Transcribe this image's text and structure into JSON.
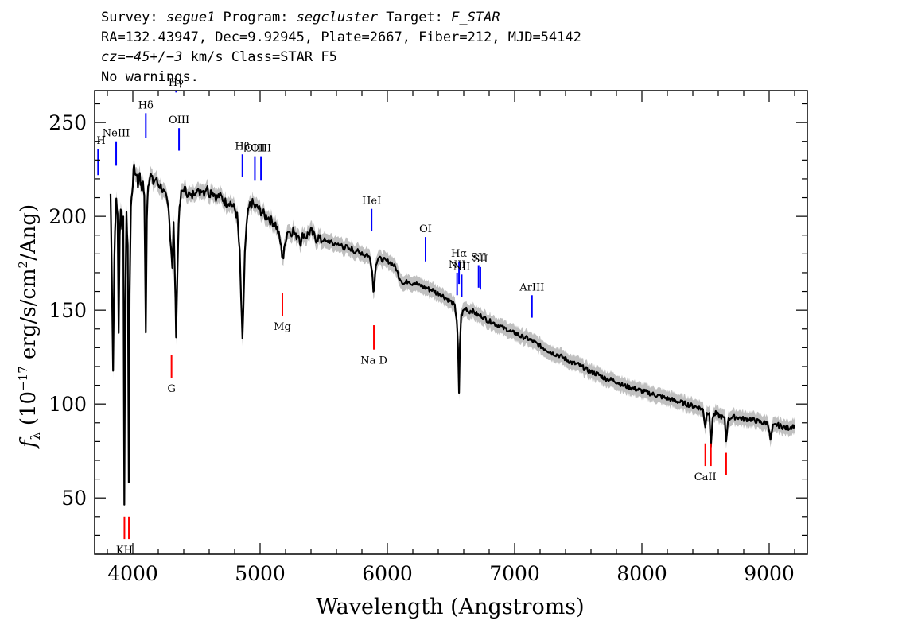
{
  "header": {
    "line1_a": "Survey: ",
    "line1_b": "segue1",
    "line1_c": " Program: ",
    "line1_d": "segcluster",
    "line1_e": " Target: ",
    "line1_f": "F_STAR",
    "line2": "RA=132.43947, Dec=9.92945, Plate=2667, Fiber=212, MJD=54142",
    "line3_a": "cz=",
    "line3_b": "−45+/−3",
    "line3_c": " km/s Class=STAR F5",
    "line4": "No warnings."
  },
  "chart_data": {
    "type": "line",
    "xlabel": "Wavelength (Angstroms)",
    "ylabel": "f_λ (10^-17 erg/s/cm^2/Ang)",
    "xlim": [
      3700,
      9300
    ],
    "ylim": [
      20,
      267
    ],
    "x_ticks": [
      4000,
      5000,
      6000,
      7000,
      8000,
      9000
    ],
    "y_ticks": [
      50,
      100,
      150,
      200,
      250
    ],
    "grid": false,
    "colors": {
      "flux": "#000000",
      "error_band": "#c0c0c0",
      "emission": "#0000ff",
      "absorption": "#ff0000"
    },
    "series": [
      {
        "name": "flux",
        "points": [
          [
            3825,
            212
          ],
          [
            3835,
            170
          ],
          [
            3845,
            118
          ],
          [
            3855,
            180
          ],
          [
            3870,
            210
          ],
          [
            3880,
            200
          ],
          [
            3889,
            140
          ],
          [
            3897,
            190
          ],
          [
            3905,
            205
          ],
          [
            3915,
            195
          ],
          [
            3925,
            200
          ],
          [
            3933,
            48
          ],
          [
            3940,
            150
          ],
          [
            3950,
            200
          ],
          [
            3960,
            185
          ],
          [
            3968,
            56
          ],
          [
            3975,
            160
          ],
          [
            3985,
            205
          ],
          [
            4000,
            218
          ],
          [
            4010,
            228
          ],
          [
            4020,
            222
          ],
          [
            4030,
            224
          ],
          [
            4040,
            216
          ],
          [
            4050,
            224
          ],
          [
            4060,
            218
          ],
          [
            4070,
            214
          ],
          [
            4080,
            218
          ],
          [
            4090,
            210
          ],
          [
            4102,
            140
          ],
          [
            4110,
            200
          ],
          [
            4120,
            218
          ],
          [
            4140,
            222
          ],
          [
            4160,
            218
          ],
          [
            4180,
            220
          ],
          [
            4200,
            217
          ],
          [
            4220,
            216
          ],
          [
            4240,
            213
          ],
          [
            4260,
            210
          ],
          [
            4280,
            204
          ],
          [
            4300,
            184
          ],
          [
            4310,
            174
          ],
          [
            4320,
            196
          ],
          [
            4330,
            170
          ],
          [
            4340,
            138
          ],
          [
            4350,
            168
          ],
          [
            4360,
            198
          ],
          [
            4380,
            212
          ],
          [
            4400,
            215
          ],
          [
            4420,
            213
          ],
          [
            4440,
            212
          ],
          [
            4460,
            210
          ],
          [
            4480,
            213
          ],
          [
            4500,
            215
          ],
          [
            4520,
            212
          ],
          [
            4540,
            215
          ],
          [
            4560,
            213
          ],
          [
            4580,
            216
          ],
          [
            4600,
            212
          ],
          [
            4620,
            214
          ],
          [
            4640,
            212
          ],
          [
            4660,
            210
          ],
          [
            4680,
            211
          ],
          [
            4700,
            210
          ],
          [
            4720,
            208
          ],
          [
            4740,
            207
          ],
          [
            4760,
            208
          ],
          [
            4780,
            206
          ],
          [
            4800,
            204
          ],
          [
            4820,
            200
          ],
          [
            4840,
            180
          ],
          [
            4861,
            133
          ],
          [
            4880,
            180
          ],
          [
            4900,
            200
          ],
          [
            4920,
            206
          ],
          [
            4940,
            207
          ],
          [
            4960,
            205
          ],
          [
            4980,
            205
          ],
          [
            5000,
            203
          ],
          [
            5020,
            202
          ],
          [
            5040,
            200
          ],
          [
            5060,
            200
          ],
          [
            5080,
            198
          ],
          [
            5100,
            197
          ],
          [
            5120,
            196
          ],
          [
            5140,
            192
          ],
          [
            5160,
            186
          ],
          [
            5172,
            180
          ],
          [
            5183,
            178
          ],
          [
            5200,
            188
          ],
          [
            5220,
            193
          ],
          [
            5240,
            191
          ],
          [
            5260,
            193
          ],
          [
            5280,
            189
          ],
          [
            5300,
            191
          ],
          [
            5320,
            186
          ],
          [
            5340,
            191
          ],
          [
            5360,
            189
          ],
          [
            5380,
            191
          ],
          [
            5400,
            192
          ],
          [
            5420,
            190
          ],
          [
            5440,
            188
          ],
          [
            5460,
            189
          ],
          [
            5480,
            187
          ],
          [
            5500,
            188
          ],
          [
            5520,
            186
          ],
          [
            5540,
            187
          ],
          [
            5560,
            186
          ],
          [
            5580,
            185
          ],
          [
            5600,
            186
          ],
          [
            5620,
            184
          ],
          [
            5640,
            185
          ],
          [
            5660,
            183
          ],
          [
            5680,
            184
          ],
          [
            5700,
            182
          ],
          [
            5720,
            183
          ],
          [
            5740,
            181
          ],
          [
            5760,
            182
          ],
          [
            5780,
            180
          ],
          [
            5800,
            181
          ],
          [
            5820,
            179
          ],
          [
            5840,
            180
          ],
          [
            5860,
            178
          ],
          [
            5880,
            172
          ],
          [
            5890,
            160
          ],
          [
            5896,
            162
          ],
          [
            5910,
            175
          ],
          [
            5930,
            178
          ],
          [
            5950,
            177
          ],
          [
            5970,
            177
          ],
          [
            5990,
            176
          ],
          [
            6010,
            176
          ],
          [
            6030,
            175
          ],
          [
            6050,
            174
          ],
          [
            6070,
            172
          ],
          [
            6090,
            168
          ],
          [
            6110,
            166
          ],
          [
            6130,
            164
          ],
          [
            6150,
            165
          ],
          [
            6170,
            166
          ],
          [
            6190,
            164
          ],
          [
            6210,
            165
          ],
          [
            6230,
            164
          ],
          [
            6250,
            163
          ],
          [
            6270,
            163
          ],
          [
            6290,
            162
          ],
          [
            6310,
            162
          ],
          [
            6330,
            161
          ],
          [
            6350,
            161
          ],
          [
            6370,
            160
          ],
          [
            6390,
            159
          ],
          [
            6410,
            159
          ],
          [
            6430,
            158
          ],
          [
            6450,
            157
          ],
          [
            6470,
            156
          ],
          [
            6490,
            155
          ],
          [
            6510,
            154
          ],
          [
            6530,
            152
          ],
          [
            6545,
            145
          ],
          [
            6555,
            130
          ],
          [
            6563,
            105
          ],
          [
            6570,
            132
          ],
          [
            6580,
            147
          ],
          [
            6600,
            150
          ],
          [
            6620,
            151
          ],
          [
            6640,
            149
          ],
          [
            6660,
            150
          ],
          [
            6680,
            149
          ],
          [
            6700,
            148
          ],
          [
            6720,
            147
          ],
          [
            6740,
            147
          ],
          [
            6760,
            146
          ],
          [
            6780,
            145
          ],
          [
            6800,
            144
          ],
          [
            6820,
            144
          ],
          [
            6840,
            143
          ],
          [
            6860,
            142
          ],
          [
            6880,
            142
          ],
          [
            6900,
            141
          ],
          [
            6920,
            140
          ],
          [
            6940,
            140
          ],
          [
            6960,
            139
          ],
          [
            6980,
            138
          ],
          [
            7000,
            138
          ],
          [
            7050,
            136
          ],
          [
            7100,
            135
          ],
          [
            7150,
            133
          ],
          [
            7200,
            131
          ],
          [
            7250,
            129
          ],
          [
            7300,
            127
          ],
          [
            7350,
            126
          ],
          [
            7400,
            124
          ],
          [
            7450,
            122
          ],
          [
            7500,
            121
          ],
          [
            7550,
            119
          ],
          [
            7600,
            117
          ],
          [
            7650,
            116
          ],
          [
            7700,
            114
          ],
          [
            7750,
            113
          ],
          [
            7800,
            112
          ],
          [
            7850,
            110
          ],
          [
            7900,
            109
          ],
          [
            7950,
            108
          ],
          [
            8000,
            107
          ],
          [
            8050,
            106
          ],
          [
            8100,
            105
          ],
          [
            8150,
            104
          ],
          [
            8200,
            103
          ],
          [
            8250,
            102
          ],
          [
            8300,
            101
          ],
          [
            8350,
            100
          ],
          [
            8400,
            99
          ],
          [
            8450,
            98
          ],
          [
            8480,
            97
          ],
          [
            8498,
            88
          ],
          [
            8510,
            95
          ],
          [
            8530,
            96
          ],
          [
            8542,
            76
          ],
          [
            8555,
            93
          ],
          [
            8580,
            95
          ],
          [
            8600,
            94
          ],
          [
            8630,
            93
          ],
          [
            8650,
            92
          ],
          [
            8662,
            80
          ],
          [
            8675,
            91
          ],
          [
            8700,
            93
          ],
          [
            8750,
            93
          ],
          [
            8800,
            92
          ],
          [
            8850,
            92
          ],
          [
            8900,
            91
          ],
          [
            8950,
            90
          ],
          [
            8990,
            90
          ],
          [
            9010,
            81
          ],
          [
            9030,
            88
          ],
          [
            9060,
            89
          ],
          [
            9100,
            88
          ],
          [
            9140,
            87
          ],
          [
            9180,
            88
          ],
          [
            9200,
            89
          ]
        ]
      }
    ],
    "emission_lines": [
      {
        "label": "H",
        "wavelength": 3727,
        "y_range": [
          222,
          236
        ]
      },
      {
        "label": "NeIII",
        "wavelength": 3869,
        "y_range": [
          227,
          240
        ]
      },
      {
        "label": "Hδ",
        "wavelength": 4102,
        "y_range": [
          242,
          255
        ]
      },
      {
        "label": "Hγ",
        "wavelength": 4340,
        "y_range": [
          266,
          272
        ]
      },
      {
        "label": "OIII",
        "wavelength": 4363,
        "y_range": [
          235,
          247
        ]
      },
      {
        "label": "Hβ",
        "wavelength": 4861,
        "y_range": [
          221,
          233
        ]
      },
      {
        "label": "OIII",
        "wavelength": 4959,
        "y_range": [
          219,
          232
        ]
      },
      {
        "label": "OIII",
        "wavelength": 5007,
        "y_range": [
          219,
          232
        ]
      },
      {
        "label": "HeI",
        "wavelength": 5876,
        "y_range": [
          192,
          204
        ]
      },
      {
        "label": "OI",
        "wavelength": 6300,
        "y_range": [
          176,
          189
        ]
      },
      {
        "label": "NII",
        "wavelength": 6548,
        "y_range": [
          158,
          170
        ]
      },
      {
        "label": "Hα",
        "wavelength": 6563,
        "y_range": [
          164,
          176
        ]
      },
      {
        "label": "NII",
        "wavelength": 6584,
        "y_range": [
          157,
          169
        ]
      },
      {
        "label": "SII",
        "wavelength": 6717,
        "y_range": [
          162,
          174
        ]
      },
      {
        "label": "SII",
        "wavelength": 6731,
        "y_range": [
          161,
          173
        ]
      },
      {
        "label": "ArIII",
        "wavelength": 7136,
        "y_range": [
          146,
          158
        ]
      }
    ],
    "absorption_lines": [
      {
        "label": "KH",
        "wavelength": 3934,
        "y_range": [
          28,
          40
        ]
      },
      {
        "label": "",
        "wavelength": 3969,
        "y_range": [
          28,
          40
        ]
      },
      {
        "label": "G",
        "wavelength": 4304,
        "y_range": [
          114,
          126
        ]
      },
      {
        "label": "Mg",
        "wavelength": 5175,
        "y_range": [
          147,
          159
        ]
      },
      {
        "label": "Na  D",
        "wavelength": 5894,
        "y_range": [
          129,
          142
        ]
      },
      {
        "label": "CaII",
        "wavelength": 8498,
        "y_range": [
          67,
          79
        ]
      },
      {
        "label": "",
        "wavelength": 8542,
        "y_range": [
          67,
          79
        ]
      },
      {
        "label": "",
        "wavelength": 8662,
        "y_range": [
          62,
          74
        ]
      }
    ]
  }
}
